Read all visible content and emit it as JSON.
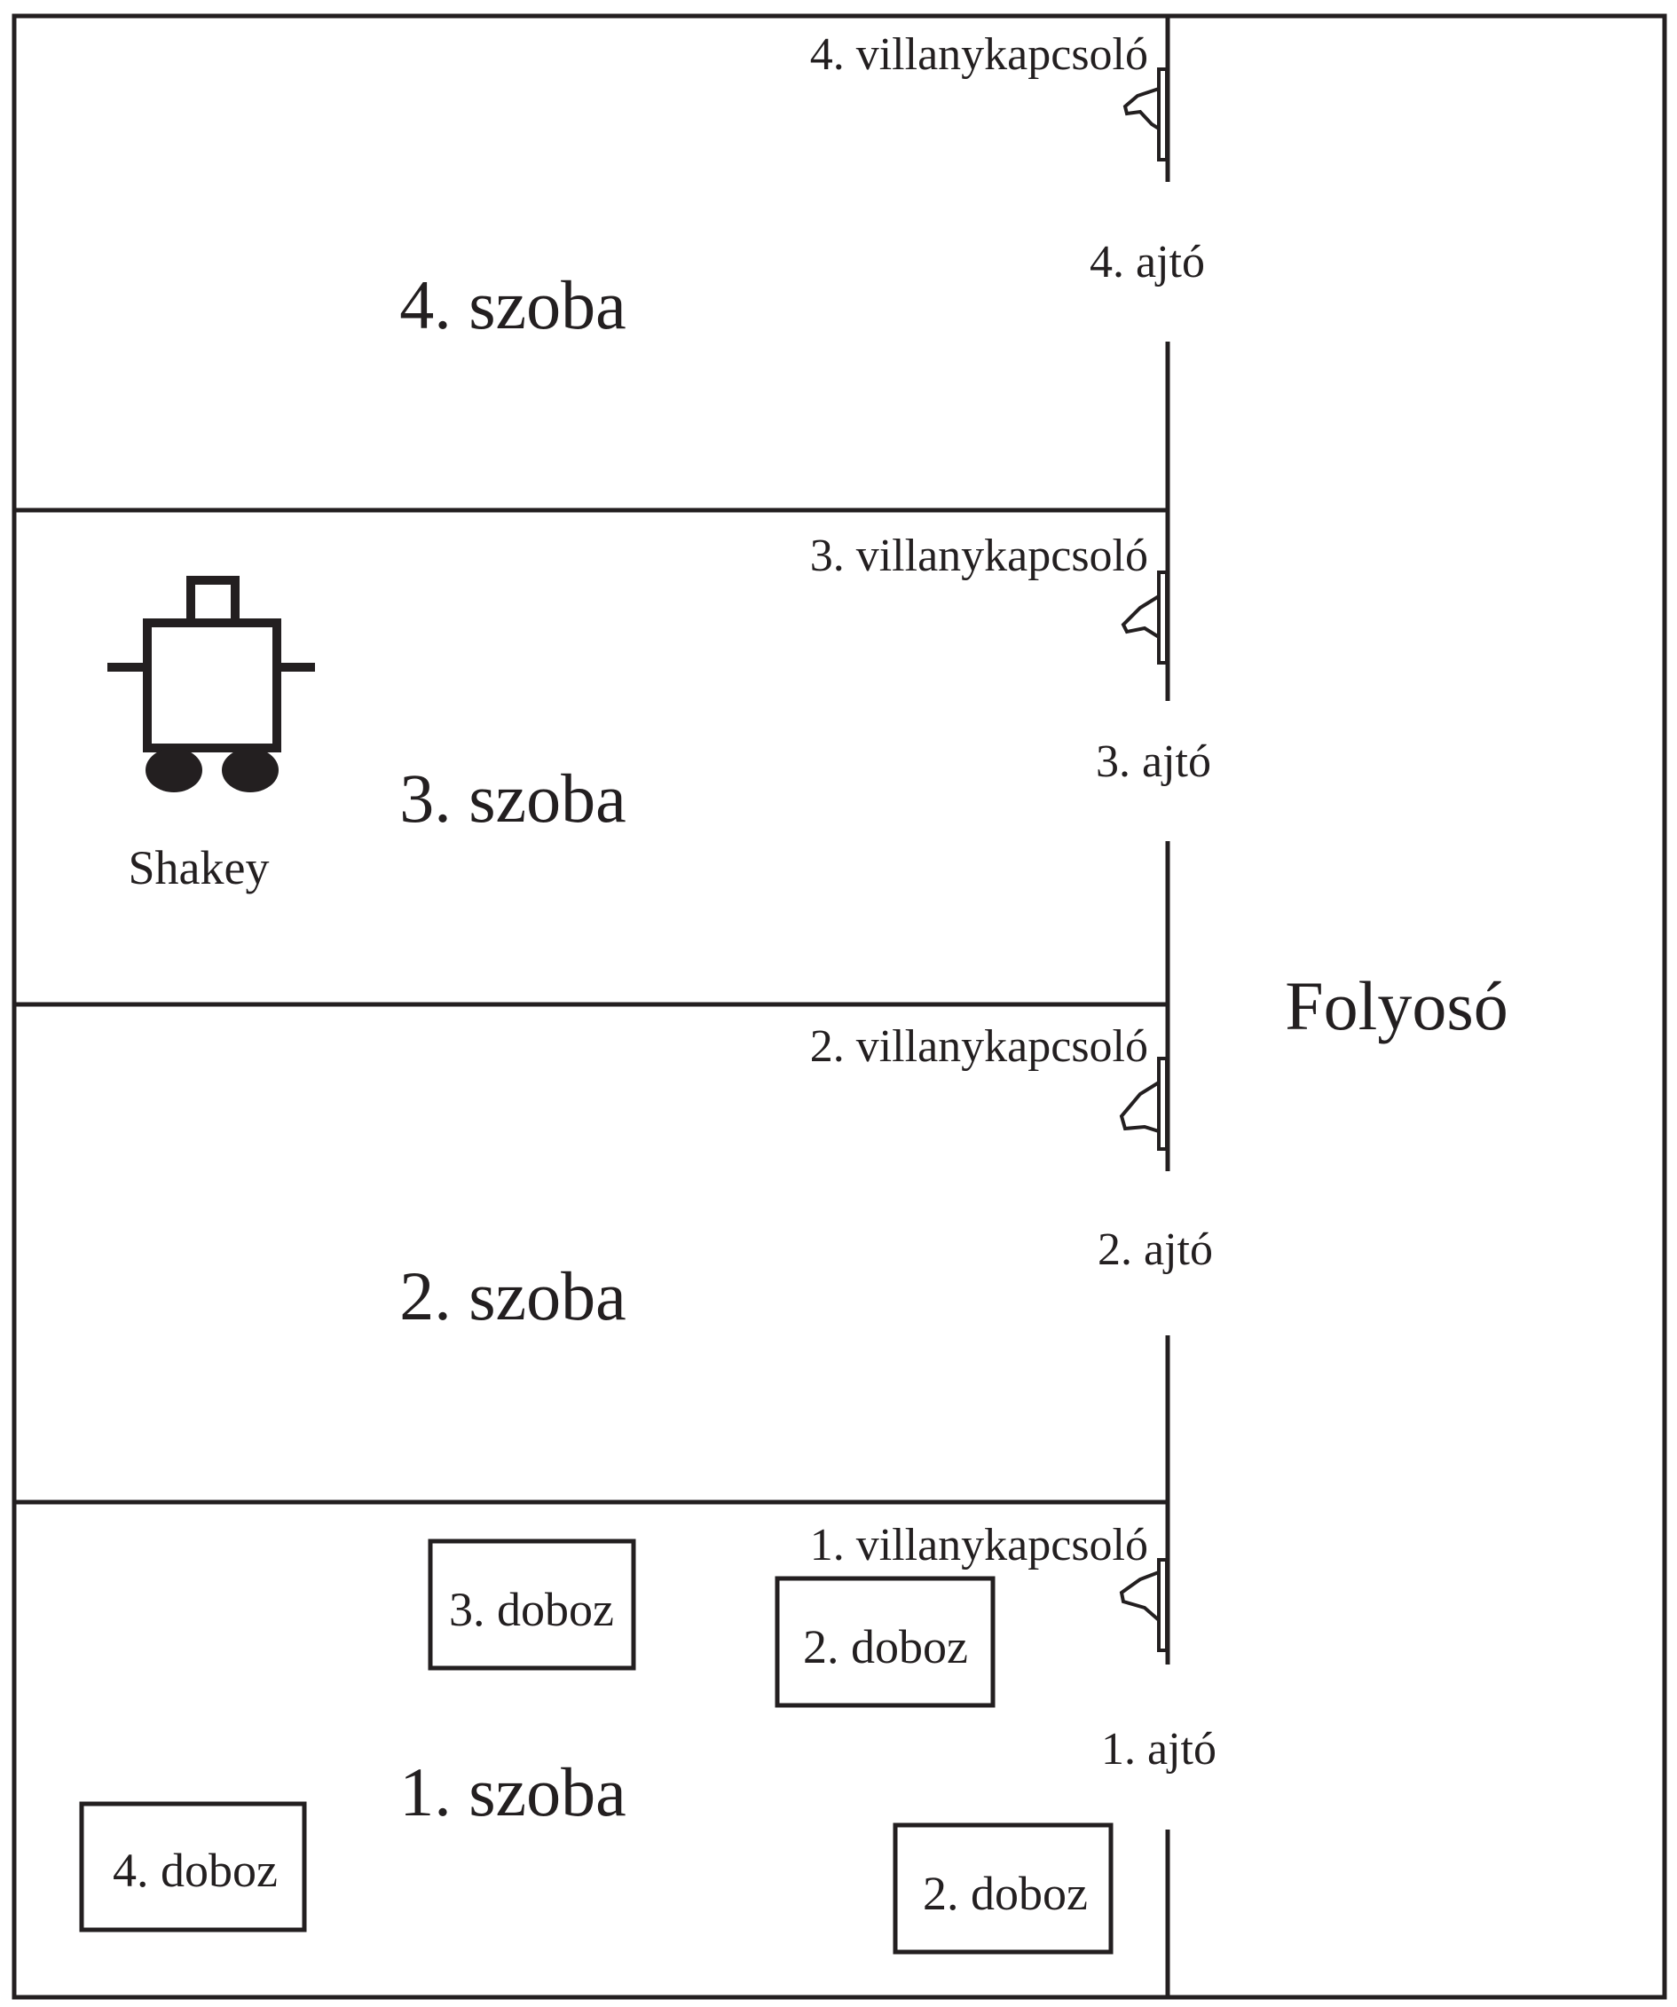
{
  "diagram": {
    "corridor": "Folyosó",
    "rooms": [
      {
        "id": "room-4",
        "label": "4. szoba"
      },
      {
        "id": "room-3",
        "label": "3. szoba"
      },
      {
        "id": "room-2",
        "label": "2. szoba"
      },
      {
        "id": "room-1",
        "label": "1. szoba"
      }
    ],
    "doors": [
      {
        "id": "door-4",
        "label": "4. ajtó"
      },
      {
        "id": "door-3",
        "label": "3. ajtó"
      },
      {
        "id": "door-2",
        "label": "2. ajtó"
      },
      {
        "id": "door-1",
        "label": "1. ajtó"
      }
    ],
    "switches": [
      {
        "id": "switch-4",
        "label": "4. villanykapcsoló"
      },
      {
        "id": "switch-3",
        "label": "3. villanykapcsoló"
      },
      {
        "id": "switch-2",
        "label": "2. villanykapcsoló"
      },
      {
        "id": "switch-1",
        "label": "1. villanykapcsoló"
      }
    ],
    "boxes": [
      {
        "id": "box-3",
        "label": "3. doboz"
      },
      {
        "id": "box-2a",
        "label": "2. doboz"
      },
      {
        "id": "box-4",
        "label": "4. doboz"
      },
      {
        "id": "box-2b",
        "label": "2. doboz"
      }
    ],
    "robot": {
      "label": "Shakey"
    }
  }
}
